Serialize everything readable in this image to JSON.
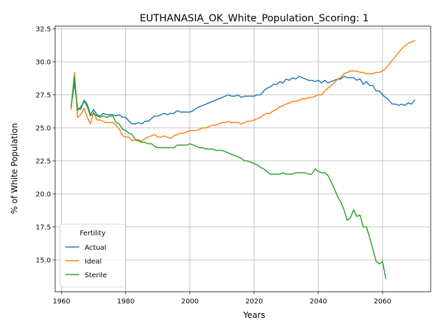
{
  "chart_data": {
    "type": "line",
    "title": "EUTHANASIA_OK_White_Population_Scoring: 1",
    "xlabel": "Years",
    "ylabel": "% of White Population",
    "xlim": [
      1958,
      2075
    ],
    "ylim": [
      12.6,
      32.7
    ],
    "xticks": [
      1960,
      1980,
      2000,
      2020,
      2040,
      2060
    ],
    "yticks": [
      15.0,
      17.5,
      20.0,
      22.5,
      25.0,
      27.5,
      30.0,
      32.5
    ],
    "grid": true,
    "legend": {
      "title": "Fertility",
      "placement": "lower-left"
    },
    "series": [
      {
        "name": "Actual",
        "color": "#1f77b4",
        "x": [
          1963,
          1964,
          1965,
          1966,
          1967,
          1968,
          1969,
          1970,
          1971,
          1972,
          1973,
          1974,
          1975,
          1976,
          1977,
          1978,
          1979,
          1980,
          1981,
          1982,
          1983,
          1984,
          1985,
          1986,
          1987,
          1988,
          1989,
          1990,
          1991,
          1992,
          1993,
          1994,
          1995,
          1996,
          1997,
          1998,
          1999,
          2000,
          2001,
          2002,
          2003,
          2004,
          2005,
          2006,
          2007,
          2008,
          2009,
          2010,
          2011,
          2012,
          2013,
          2014,
          2015,
          2016,
          2017,
          2018,
          2019,
          2020,
          2021,
          2022,
          2023,
          2024,
          2025,
          2026,
          2027,
          2028,
          2029,
          2030,
          2031,
          2032,
          2033,
          2034,
          2035,
          2036,
          2037,
          2038,
          2039,
          2040,
          2041,
          2042,
          2043,
          2044,
          2045,
          2046,
          2047,
          2048,
          2049,
          2050,
          2051,
          2052,
          2053,
          2054,
          2055,
          2056,
          2057,
          2058,
          2059,
          2060,
          2061,
          2062,
          2063,
          2064,
          2065,
          2066,
          2067,
          2068,
          2069,
          2070
        ],
        "y": [
          26.6,
          28.4,
          26.5,
          26.4,
          27.1,
          26.8,
          26.0,
          26.4,
          26.0,
          25.9,
          26.1,
          26.0,
          26.0,
          26.0,
          25.9,
          26.0,
          25.8,
          25.8,
          25.5,
          25.3,
          25.3,
          25.4,
          25.3,
          25.5,
          25.5,
          25.7,
          25.9,
          25.9,
          26.0,
          26.1,
          26.0,
          26.1,
          26.1,
          26.3,
          26.2,
          26.2,
          26.2,
          26.2,
          26.3,
          26.5,
          26.6,
          26.7,
          26.8,
          26.9,
          27.0,
          27.1,
          27.2,
          27.3,
          27.4,
          27.5,
          27.4,
          27.4,
          27.5,
          27.3,
          27.4,
          27.4,
          27.4,
          27.4,
          27.5,
          27.5,
          27.8,
          28.0,
          28.1,
          28.3,
          28.3,
          28.5,
          28.4,
          28.7,
          28.6,
          28.8,
          28.7,
          28.9,
          28.8,
          28.7,
          28.6,
          28.6,
          28.5,
          28.6,
          28.4,
          28.6,
          28.4,
          28.5,
          28.6,
          28.7,
          28.7,
          28.9,
          28.8,
          28.8,
          28.8,
          28.6,
          28.7,
          28.3,
          28.5,
          28.2,
          28.2,
          27.8,
          27.8,
          27.5,
          27.3,
          27.1,
          26.8,
          26.8,
          26.7,
          26.8,
          26.7,
          26.9,
          26.8,
          27.1
        ]
      },
      {
        "name": "Ideal",
        "color": "#ff7f0e",
        "x": [
          1963,
          1964,
          1965,
          1966,
          1967,
          1968,
          1969,
          1970,
          1971,
          1972,
          1973,
          1974,
          1975,
          1976,
          1977,
          1978,
          1979,
          1980,
          1981,
          1982,
          1983,
          1984,
          1985,
          1986,
          1987,
          1988,
          1989,
          1990,
          1991,
          1992,
          1993,
          1994,
          1995,
          1996,
          1997,
          1998,
          1999,
          2000,
          2001,
          2002,
          2003,
          2004,
          2005,
          2006,
          2007,
          2008,
          2009,
          2010,
          2011,
          2012,
          2013,
          2014,
          2015,
          2016,
          2017,
          2018,
          2019,
          2020,
          2021,
          2022,
          2023,
          2024,
          2025,
          2026,
          2027,
          2028,
          2029,
          2030,
          2031,
          2032,
          2033,
          2034,
          2035,
          2036,
          2037,
          2038,
          2039,
          2040,
          2041,
          2042,
          2043,
          2044,
          2045,
          2046,
          2047,
          2048,
          2049,
          2050,
          2051,
          2052,
          2053,
          2054,
          2055,
          2056,
          2057,
          2058,
          2059,
          2060,
          2061,
          2062,
          2063,
          2064,
          2065,
          2066,
          2067,
          2068,
          2069,
          2070
        ],
        "y": [
          26.4,
          29.2,
          25.8,
          26.0,
          26.5,
          25.8,
          25.3,
          26.2,
          25.6,
          25.6,
          25.5,
          25.4,
          25.4,
          25.4,
          25.2,
          24.9,
          24.4,
          24.3,
          24.3,
          24.0,
          24.1,
          24.1,
          24.0,
          24.2,
          24.3,
          24.4,
          24.5,
          24.3,
          24.3,
          24.4,
          24.3,
          24.2,
          24.4,
          24.5,
          24.6,
          24.6,
          24.7,
          24.8,
          24.8,
          24.8,
          24.9,
          25.0,
          25.0,
          25.1,
          25.2,
          25.2,
          25.3,
          25.4,
          25.4,
          25.5,
          25.4,
          25.4,
          25.4,
          25.3,
          25.4,
          25.5,
          25.5,
          25.6,
          25.7,
          25.8,
          26.0,
          26.1,
          26.1,
          26.3,
          26.4,
          26.6,
          26.7,
          26.8,
          26.9,
          27.0,
          27.0,
          27.1,
          27.2,
          27.2,
          27.3,
          27.3,
          27.4,
          27.5,
          27.5,
          27.8,
          28.0,
          28.2,
          28.4,
          28.7,
          28.8,
          29.1,
          29.2,
          29.3,
          29.3,
          29.3,
          29.2,
          29.2,
          29.1,
          29.1,
          29.1,
          29.2,
          29.2,
          29.3,
          29.5,
          29.8,
          30.1,
          30.4,
          30.7,
          31.0,
          31.2,
          31.4,
          31.5,
          31.6
        ]
      },
      {
        "name": "Sterile",
        "color": "#2ca02c",
        "x": [
          1963,
          1964,
          1965,
          1966,
          1967,
          1968,
          1969,
          1970,
          1971,
          1972,
          1973,
          1974,
          1975,
          1976,
          1977,
          1978,
          1979,
          1980,
          1981,
          1982,
          1983,
          1984,
          1985,
          1986,
          1987,
          1988,
          1989,
          1990,
          1991,
          1992,
          1993,
          1994,
          1995,
          1996,
          1997,
          1998,
          1999,
          2000,
          2001,
          2002,
          2003,
          2004,
          2005,
          2006,
          2007,
          2008,
          2009,
          2010,
          2011,
          2012,
          2013,
          2014,
          2015,
          2016,
          2017,
          2018,
          2019,
          2020,
          2021,
          2022,
          2023,
          2024,
          2025,
          2026,
          2027,
          2028,
          2029,
          2030,
          2031,
          2032,
          2033,
          2034,
          2035,
          2036,
          2037,
          2038,
          2039,
          2040,
          2041,
          2042,
          2043,
          2044,
          2045,
          2046,
          2047,
          2048,
          2049,
          2050,
          2051,
          2052,
          2053,
          2054,
          2055,
          2056,
          2057,
          2058,
          2059,
          2060,
          2061
        ],
        "y": [
          26.6,
          28.9,
          26.3,
          26.6,
          27.0,
          26.6,
          25.9,
          26.1,
          25.9,
          25.8,
          25.9,
          25.8,
          25.9,
          25.9,
          25.4,
          25.3,
          24.9,
          24.8,
          24.6,
          24.5,
          24.1,
          24.0,
          23.9,
          23.9,
          23.8,
          23.8,
          23.6,
          23.5,
          23.5,
          23.5,
          23.5,
          23.5,
          23.5,
          23.7,
          23.7,
          23.7,
          23.7,
          23.8,
          23.7,
          23.6,
          23.5,
          23.5,
          23.4,
          23.4,
          23.4,
          23.3,
          23.3,
          23.3,
          23.2,
          23.1,
          23.0,
          22.9,
          22.8,
          22.7,
          22.5,
          22.5,
          22.4,
          22.3,
          22.2,
          22.0,
          21.9,
          21.7,
          21.5,
          21.5,
          21.5,
          21.5,
          21.6,
          21.5,
          21.5,
          21.5,
          21.6,
          21.6,
          21.6,
          21.6,
          21.5,
          21.5,
          21.9,
          21.7,
          21.6,
          21.6,
          21.4,
          20.9,
          20.4,
          19.8,
          19.4,
          18.8,
          18.0,
          18.2,
          18.8,
          18.3,
          18.4,
          17.5,
          17.5,
          16.7,
          15.8,
          14.9,
          14.7,
          14.9,
          13.6
        ]
      }
    ]
  }
}
